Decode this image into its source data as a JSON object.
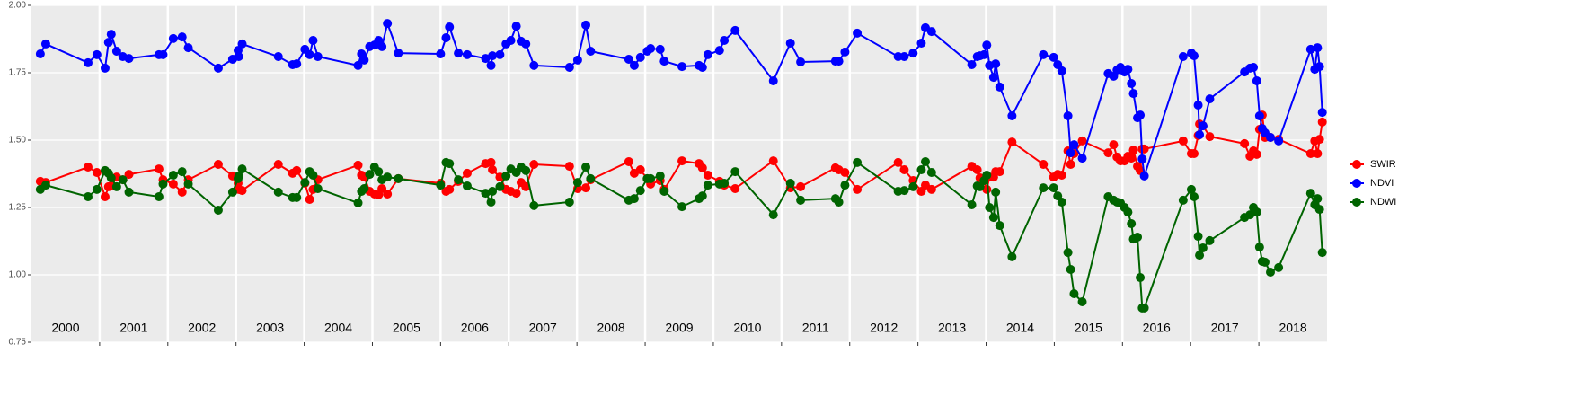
{
  "chart_data": {
    "type": "line",
    "x": [
      2000.13,
      2000.21,
      2000.83,
      2000.96,
      2001.08,
      2001.13,
      2001.17,
      2001.25,
      2001.34,
      2001.43,
      2001.87,
      2001.93,
      2002.08,
      2002.21,
      2002.3,
      2002.74,
      2002.95,
      2003.03,
      2003.04,
      2003.09,
      2003.62,
      2003.83,
      2003.89,
      2004.01,
      2004.08,
      2004.13,
      2004.2,
      2004.79,
      2004.84,
      2004.88,
      2004.96,
      2005.03,
      2005.09,
      2005.14,
      2005.22,
      2005.38,
      2006.0,
      2006.08,
      2006.13,
      2006.26,
      2006.39,
      2006.66,
      2006.74,
      2006.76,
      2006.87,
      2006.96,
      2007.03,
      2007.11,
      2007.18,
      2007.25,
      2007.37,
      2007.89,
      2008.01,
      2008.13,
      2008.2,
      2008.76,
      2008.84,
      2008.93,
      2009.03,
      2009.08,
      2009.22,
      2009.28,
      2009.54,
      2009.79,
      2009.84,
      2009.92,
      2010.09,
      2010.16,
      2010.32,
      2010.88,
      2011.13,
      2011.28,
      2011.79,
      2011.84,
      2011.93,
      2012.11,
      2012.71,
      2012.8,
      2012.93,
      2013.05,
      2013.11,
      2013.2,
      2013.79,
      2013.87,
      2013.91,
      2013.97,
      2014.01,
      2014.05,
      2014.11,
      2014.14,
      2014.2,
      2014.38,
      2014.84,
      2014.99,
      2015.05,
      2015.11,
      2015.2,
      2015.24,
      2015.29,
      2015.41,
      2015.79,
      2015.87,
      2015.92,
      2015.97,
      2016.03,
      2016.08,
      2016.13,
      2016.16,
      2016.22,
      2016.26,
      2016.29,
      2016.32,
      2016.89,
      2017.01,
      2017.05,
      2017.11,
      2017.13,
      2017.18,
      2017.28,
      2017.79,
      2017.87,
      2017.92,
      2017.97,
      2018.01,
      2018.05,
      2018.09,
      2018.17,
      2018.29,
      2018.76,
      2018.82,
      2018.86,
      2018.89,
      2018.93
    ],
    "series": [
      {
        "name": "SWIR",
        "color": "#ff0000",
        "values": [
          1.347,
          1.343,
          1.4,
          1.38,
          1.29,
          1.327,
          1.33,
          1.363,
          1.353,
          1.373,
          1.393,
          1.353,
          1.337,
          1.307,
          1.353,
          1.41,
          1.367,
          1.34,
          1.317,
          1.313,
          1.41,
          1.377,
          1.387,
          1.34,
          1.28,
          1.317,
          1.353,
          1.407,
          1.37,
          1.363,
          1.31,
          1.3,
          1.297,
          1.32,
          1.3,
          1.357,
          1.34,
          1.31,
          1.317,
          1.347,
          1.377,
          1.413,
          1.417,
          1.39,
          1.363,
          1.317,
          1.31,
          1.303,
          1.343,
          1.327,
          1.41,
          1.403,
          1.32,
          1.323,
          1.353,
          1.42,
          1.377,
          1.39,
          1.357,
          1.337,
          1.35,
          1.317,
          1.423,
          1.413,
          1.397,
          1.37,
          1.347,
          1.333,
          1.32,
          1.423,
          1.323,
          1.327,
          1.397,
          1.39,
          1.38,
          1.317,
          1.417,
          1.39,
          1.35,
          1.31,
          1.333,
          1.317,
          1.403,
          1.39,
          1.36,
          1.35,
          1.317,
          1.363,
          1.363,
          1.383,
          1.383,
          1.493,
          1.41,
          1.363,
          1.373,
          1.37,
          1.46,
          1.41,
          1.45,
          1.497,
          1.453,
          1.483,
          1.437,
          1.423,
          1.423,
          1.44,
          1.433,
          1.463,
          1.403,
          1.387,
          1.467,
          1.467,
          1.497,
          1.45,
          1.45,
          1.517,
          1.56,
          1.553,
          1.513,
          1.487,
          1.44,
          1.46,
          1.447,
          1.54,
          1.593,
          1.51,
          1.51,
          1.503,
          1.45,
          1.497,
          1.45,
          1.503,
          1.567
        ]
      },
      {
        "name": "NDVI",
        "color": "#0000ff",
        "values": [
          1.82,
          1.857,
          1.787,
          1.817,
          1.767,
          1.863,
          1.893,
          1.83,
          1.81,
          1.803,
          1.817,
          1.817,
          1.877,
          1.883,
          1.843,
          1.767,
          1.8,
          1.833,
          1.81,
          1.857,
          1.81,
          1.78,
          1.783,
          1.837,
          1.817,
          1.87,
          1.81,
          1.777,
          1.82,
          1.797,
          1.847,
          1.853,
          1.87,
          1.847,
          1.933,
          1.823,
          1.82,
          1.88,
          1.92,
          1.823,
          1.817,
          1.803,
          1.777,
          1.813,
          1.817,
          1.857,
          1.87,
          1.923,
          1.867,
          1.857,
          1.777,
          1.77,
          1.797,
          1.927,
          1.83,
          1.8,
          1.777,
          1.807,
          1.83,
          1.84,
          1.837,
          1.793,
          1.773,
          1.777,
          1.77,
          1.817,
          1.833,
          1.87,
          1.907,
          1.72,
          1.86,
          1.79,
          1.793,
          1.793,
          1.827,
          1.897,
          1.81,
          1.81,
          1.823,
          1.86,
          1.917,
          1.903,
          1.78,
          1.81,
          1.813,
          1.817,
          1.853,
          1.777,
          1.733,
          1.783,
          1.697,
          1.59,
          1.817,
          1.807,
          1.78,
          1.757,
          1.59,
          1.453,
          1.483,
          1.433,
          1.747,
          1.737,
          1.76,
          1.77,
          1.753,
          1.763,
          1.71,
          1.673,
          1.583,
          1.593,
          1.43,
          1.367,
          1.81,
          1.823,
          1.813,
          1.63,
          1.52,
          1.553,
          1.653,
          1.753,
          1.767,
          1.77,
          1.72,
          1.59,
          1.543,
          1.527,
          1.51,
          1.497,
          1.837,
          1.763,
          1.843,
          1.773,
          1.603
        ]
      },
      {
        "name": "NDWI",
        "color": "#006400",
        "values": [
          1.317,
          1.333,
          1.29,
          1.317,
          1.387,
          1.377,
          1.36,
          1.327,
          1.353,
          1.307,
          1.29,
          1.337,
          1.37,
          1.383,
          1.337,
          1.24,
          1.307,
          1.357,
          1.367,
          1.393,
          1.307,
          1.287,
          1.287,
          1.343,
          1.383,
          1.37,
          1.32,
          1.267,
          1.31,
          1.32,
          1.373,
          1.4,
          1.383,
          1.353,
          1.363,
          1.357,
          1.333,
          1.417,
          1.413,
          1.353,
          1.33,
          1.303,
          1.27,
          1.31,
          1.327,
          1.367,
          1.393,
          1.38,
          1.4,
          1.387,
          1.257,
          1.27,
          1.343,
          1.4,
          1.357,
          1.277,
          1.283,
          1.313,
          1.357,
          1.357,
          1.367,
          1.31,
          1.253,
          1.283,
          1.293,
          1.333,
          1.337,
          1.34,
          1.383,
          1.223,
          1.34,
          1.277,
          1.283,
          1.27,
          1.333,
          1.417,
          1.31,
          1.313,
          1.327,
          1.39,
          1.42,
          1.38,
          1.26,
          1.33,
          1.327,
          1.35,
          1.37,
          1.25,
          1.213,
          1.307,
          1.183,
          1.067,
          1.323,
          1.323,
          1.293,
          1.27,
          1.083,
          1.02,
          0.93,
          0.9,
          1.29,
          1.277,
          1.27,
          1.267,
          1.25,
          1.233,
          1.19,
          1.133,
          1.14,
          0.99,
          0.877,
          0.877,
          1.277,
          1.317,
          1.29,
          1.143,
          1.073,
          1.1,
          1.127,
          1.213,
          1.223,
          1.25,
          1.233,
          1.103,
          1.05,
          1.047,
          1.01,
          1.027,
          1.303,
          1.26,
          1.283,
          1.243,
          1.083
        ]
      }
    ],
    "year_labels": [
      "2000",
      "2001",
      "2002",
      "2003",
      "2004",
      "2005",
      "2006",
      "2007",
      "2008",
      "2009",
      "2010",
      "2011",
      "2012",
      "2013",
      "2014",
      "2015",
      "2016",
      "2017",
      "2018"
    ],
    "xlim": [
      2000,
      2019
    ],
    "xticks": [
      2001,
      2002,
      2003,
      2004,
      2005,
      2006,
      2007,
      2008,
      2009,
      2010,
      2011,
      2012,
      2013,
      2014,
      2015,
      2016,
      2017,
      2018
    ],
    "ylim": [
      0.75,
      2.0
    ],
    "yticks": [
      0.75,
      {
        "value": 1.0,
        "label": "1.00"
      },
      1.25,
      {
        "value": 1.5,
        "label": "1.50"
      },
      1.75,
      {
        "value": 2.0,
        "label": "2.00"
      }
    ],
    "grid": true,
    "legend": "right"
  }
}
